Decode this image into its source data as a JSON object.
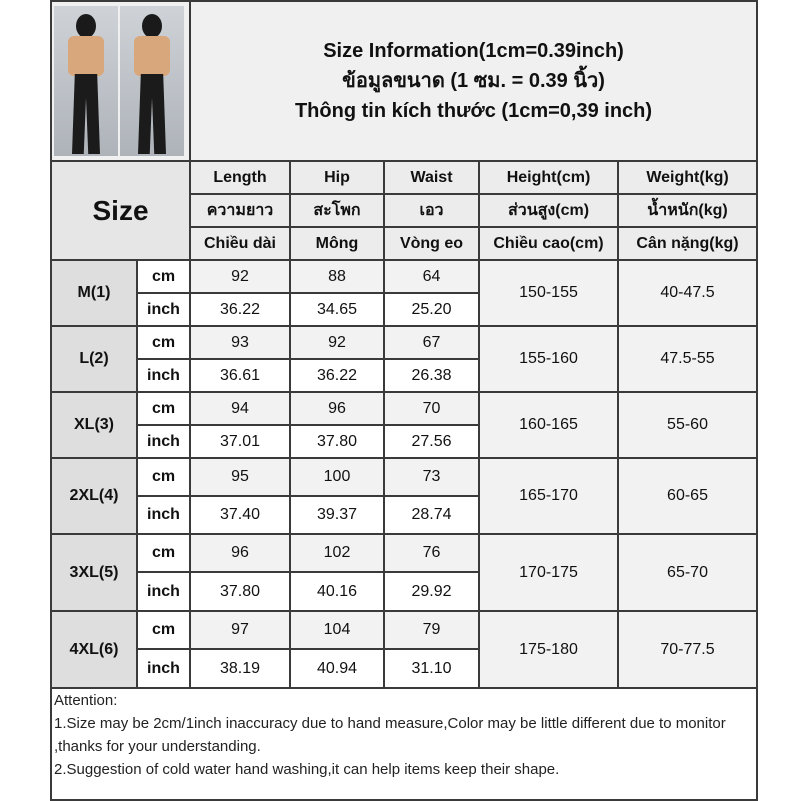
{
  "title": {
    "en": "Size Information(1cm=0.39inch)",
    "th": "ข้อมูลขนาด (1 ซม. = 0.39 นิ้ว)",
    "vi": "Thông tin kích thước (1cm=0,39 inch)"
  },
  "size_header": "Size",
  "columns": [
    {
      "en": "Length",
      "th": "ความยาว",
      "vi": "Chiều dài"
    },
    {
      "en": "Hip",
      "th": "สะโพก",
      "vi": "Mông"
    },
    {
      "en": "Waist",
      "th": "เอว",
      "vi": "Vòng eo"
    },
    {
      "en": "Height(cm)",
      "th": "ส่วนสูง(cm)",
      "vi": "Chiều cao(cm)"
    },
    {
      "en": "Weight(kg)",
      "th": "น้ำหนัก(kg)",
      "vi": "Cân nặng(kg)"
    }
  ],
  "units": {
    "cm": "cm",
    "inch": "inch"
  },
  "rows": [
    {
      "size": "M(1)",
      "cm": [
        "92",
        "88",
        "64"
      ],
      "inch": [
        "36.22",
        "34.65",
        "25.20"
      ],
      "height": "150-155",
      "weight": "40-47.5"
    },
    {
      "size": "L(2)",
      "cm": [
        "93",
        "92",
        "67"
      ],
      "inch": [
        "36.61",
        "36.22",
        "26.38"
      ],
      "height": "155-160",
      "weight": "47.5-55"
    },
    {
      "size": "XL(3)",
      "cm": [
        "94",
        "96",
        "70"
      ],
      "inch": [
        "37.01",
        "37.80",
        "27.56"
      ],
      "height": "160-165",
      "weight": "55-60"
    },
    {
      "size": "2XL(4)",
      "cm": [
        "95",
        "100",
        "73"
      ],
      "inch": [
        "37.40",
        "39.37",
        "28.74"
      ],
      "height": "165-170",
      "weight": "60-65"
    },
    {
      "size": "3XL(5)",
      "cm": [
        "96",
        "102",
        "76"
      ],
      "inch": [
        "37.80",
        "40.16",
        "29.92"
      ],
      "height": "170-175",
      "weight": "65-70"
    },
    {
      "size": "4XL(6)",
      "cm": [
        "97",
        "104",
        "79"
      ],
      "inch": [
        "38.19",
        "40.94",
        "31.10"
      ],
      "height": "175-180",
      "weight": "70-77.5"
    }
  ],
  "attention": {
    "heading": "Attention:",
    "note1": "1.Size may be 2cm/1inch inaccuracy due to hand measure,Color may be little different due to monitor ,thanks for your understanding.",
    "note2": "2.Suggestion of cold water hand washing,it can help items keep their shape."
  }
}
